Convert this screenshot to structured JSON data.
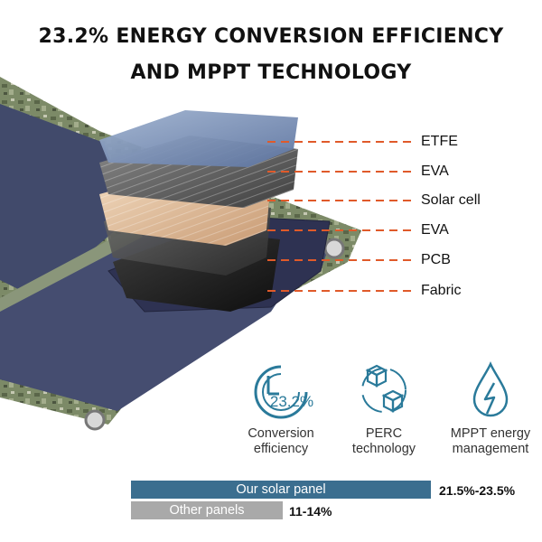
{
  "heading": {
    "line1": "23.2% ENERGY CONVERSION EFFICIENCY",
    "line2": "AND MPPT TECHNOLOGY"
  },
  "layers": [
    "ETFE",
    "EVA",
    "Solar cell",
    "EVA",
    "PCB",
    "Fabric"
  ],
  "features": [
    {
      "icon": "efficiency-gauge-icon",
      "badge": "23.2%",
      "label": "Conversion\nefficiency"
    },
    {
      "icon": "perc-cubes-icon",
      "label": "PERC\ntechnology"
    },
    {
      "icon": "lightning-drop-icon",
      "label": "MPPT energy\nmanagement"
    }
  ],
  "comparison": [
    {
      "label": "Our solar panel",
      "value": "21.5%-23.5%",
      "color": "#3b6e8f"
    },
    {
      "label": "Other panels",
      "value": "11-14%",
      "color": "#a9a9a9"
    }
  ],
  "colors": {
    "accent": "#2a7a9a",
    "leader_line": "#e05a2a",
    "panel": "#434a6e",
    "camo": "#6f7d5e"
  }
}
